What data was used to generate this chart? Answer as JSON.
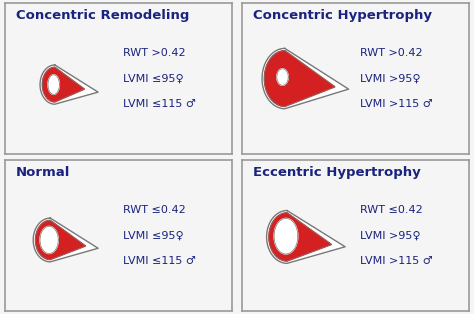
{
  "panels": [
    {
      "title": "Concentric Remodeling",
      "row": 0,
      "col": 0,
      "lines": [
        "RWT >0.42",
        "LVMI ≤95♀",
        "LVMI ≤115 ♂"
      ],
      "heart_type": "concentric_remodeling"
    },
    {
      "title": "Concentric Hypertrophy",
      "row": 0,
      "col": 1,
      "lines": [
        "RWT >0.42",
        "LVMI >95♀",
        "LVMI >115 ♂"
      ],
      "heart_type": "concentric_hypertrophy"
    },
    {
      "title": "Normal",
      "row": 1,
      "col": 0,
      "lines": [
        "RWT ≤0.42",
        "LVMI ≤95♀",
        "LVMI ≤115 ♂"
      ],
      "heart_type": "normal"
    },
    {
      "title": "Eccentric Hypertrophy",
      "row": 1,
      "col": 1,
      "lines": [
        "RWT ≤0.42",
        "LVMI >95♀",
        "LVMI >115 ♂"
      ],
      "heart_type": "eccentric_hypertrophy"
    }
  ],
  "text_color": "#1a237e",
  "bg_color": "#f5f5f5",
  "border_color": "#999999",
  "red_fill": "#d42020",
  "gray_outline": "#777777",
  "white_inner": "#ffffff",
  "title_fontsize": 9.5,
  "text_fontsize": 8.0
}
